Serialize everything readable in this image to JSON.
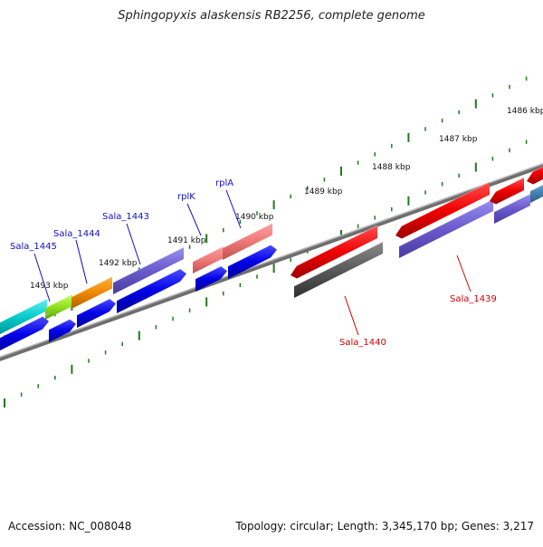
{
  "title": "Sphingopyxis alaskensis RB2256, complete genome",
  "footer": {
    "accession": "Accession: NC_008048",
    "summary": "Topology: circular; Length: 3,345,170 bp; Genes: 3,217"
  },
  "colors": {
    "tick": "#1e7a1e",
    "backbone": "#888888",
    "forward_label": "#1010c0",
    "reverse_label": "#cc0000"
  },
  "ruler_labels": [
    "1486 kbp",
    "1487 kbp",
    "1488 kbp",
    "1489 kbp",
    "1490 kbp",
    "1491 kbp",
    "1492 kbp",
    "1493 kbp"
  ],
  "gene_labels": {
    "Sala_1445": "Sala_1445",
    "Sala_1444": "Sala_1444",
    "Sala_1443": "Sala_1443",
    "rplK": "rplK",
    "rplA": "rplA",
    "Sala_1440": "Sala_1440",
    "Sala_1439": "Sala_1439"
  }
}
